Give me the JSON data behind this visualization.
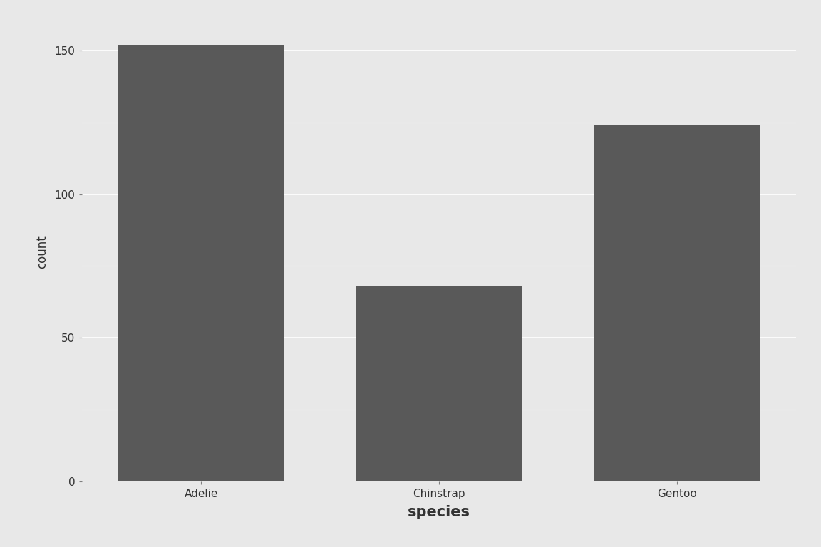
{
  "categories": [
    "Adelie",
    "Chinstrap",
    "Gentoo"
  ],
  "values": [
    152,
    68,
    124
  ],
  "bar_color": "#595959",
  "panel_background": "#e8e8e8",
  "outer_bg": "#e8e8e8",
  "strip_light": "#ebebeb",
  "strip_dark": "#d9d9d9",
  "xlabel": "species",
  "ylabel": "count",
  "xlabel_fontsize": 15,
  "ylabel_fontsize": 12,
  "tick_label_fontsize": 11,
  "yticks": [
    0,
    50,
    100,
    150
  ],
  "ylim_max": 160,
  "grid_color": "#ffffff",
  "tick_color": "#7f7f7f"
}
